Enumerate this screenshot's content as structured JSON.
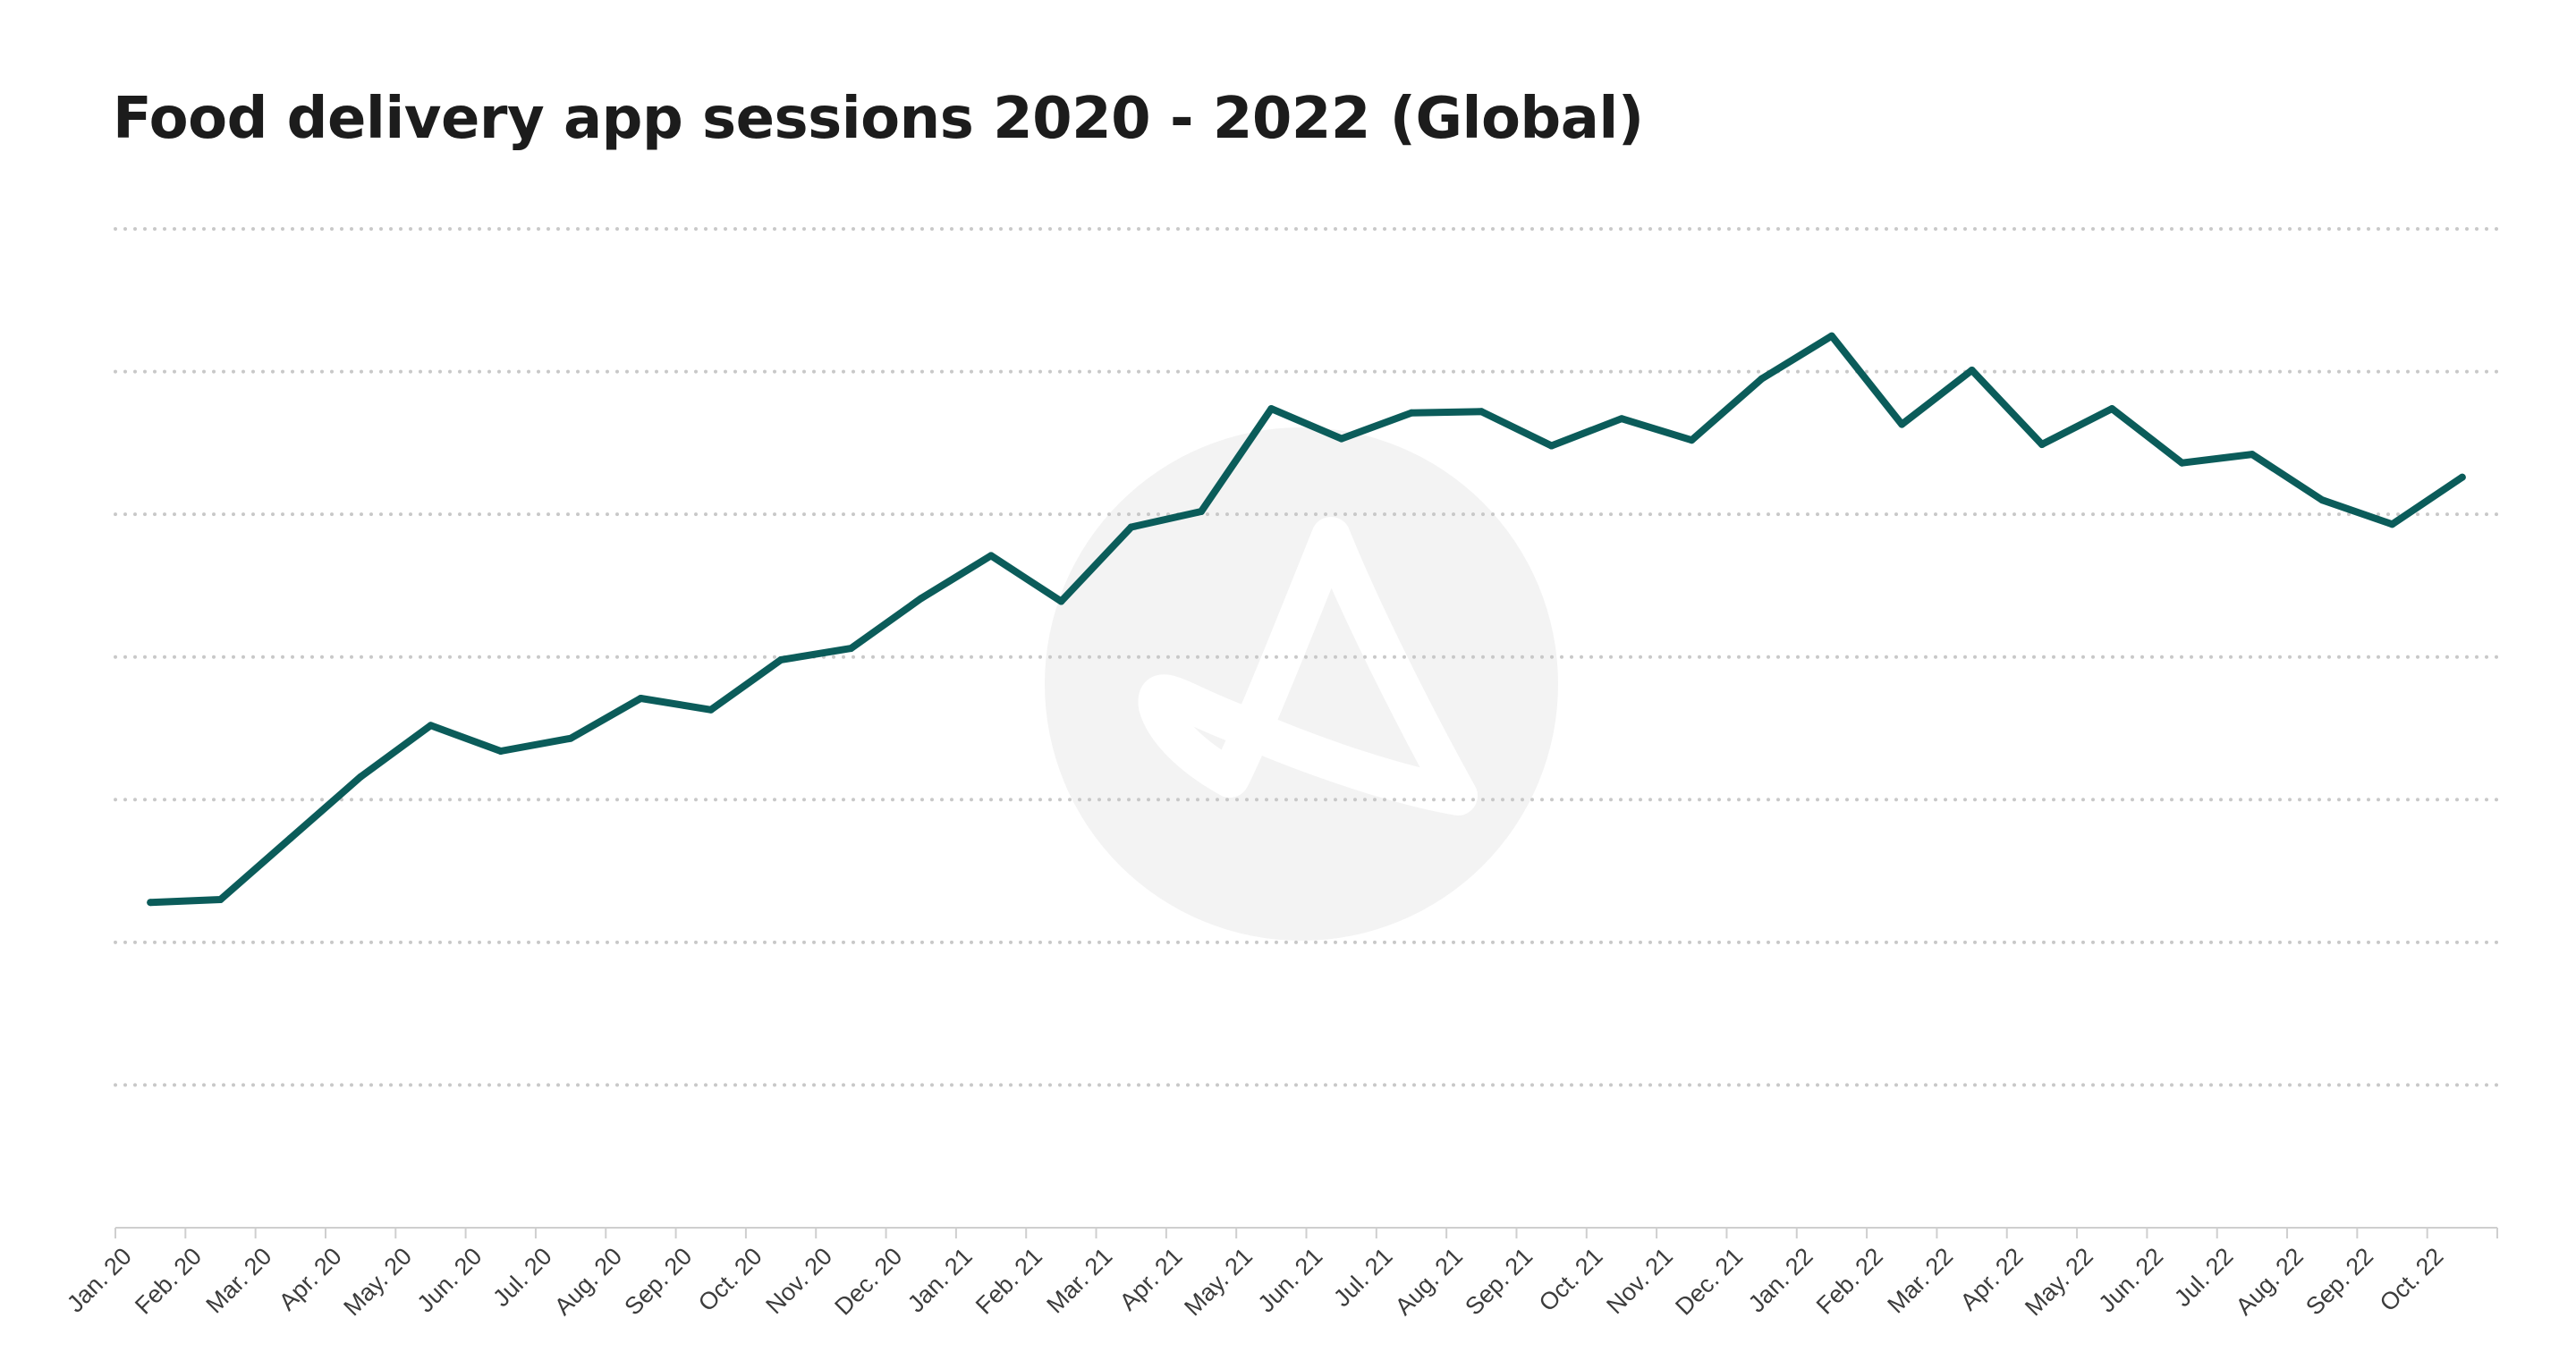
{
  "chart_data": {
    "type": "line",
    "title": "Food delivery app sessions 2020 - 2022 (Global)",
    "xlabel": "",
    "ylabel": "",
    "grid": true,
    "y_tick_labels_shown": false,
    "ylim": [
      0,
      7
    ],
    "categories": [
      "Jan. 20",
      "Feb. 20",
      "Mar. 20",
      "Apr. 20",
      "May. 20",
      "Jun. 20",
      "Jul. 20",
      "Aug. 20",
      "Sep. 20",
      "Oct. 20",
      "Nov. 20",
      "Dec. 20",
      "Jan. 21",
      "Feb. 21",
      "Mar. 21",
      "Apr. 21",
      "May. 21",
      "Jun. 21",
      "Jul. 21",
      "Aug. 21",
      "Sep. 21",
      "Oct. 21",
      "Nov. 21",
      "Dec. 21",
      "Jan. 22",
      "Feb. 22",
      "Mar. 22",
      "Apr. 22",
      "May. 22",
      "Jun. 22",
      "Jul. 22",
      "Aug. 22",
      "Sep. 22",
      "Oct. 22"
    ],
    "series": [
      {
        "color": "#0b5c5a",
        "values": [
          2.28,
          2.3,
          2.73,
          3.16,
          3.52,
          3.34,
          3.43,
          3.71,
          3.63,
          3.98,
          4.06,
          4.41,
          4.71,
          4.39,
          4.91,
          5.02,
          5.74,
          5.53,
          5.71,
          5.72,
          5.48,
          5.67,
          5.52,
          5.95,
          6.25,
          5.63,
          6.01,
          5.49,
          5.74,
          5.36,
          5.42,
          5.1,
          4.93,
          5.26
        ]
      }
    ]
  },
  "watermark": {
    "icon": "brand-logo-watermark",
    "color": "#f3f3f3"
  }
}
